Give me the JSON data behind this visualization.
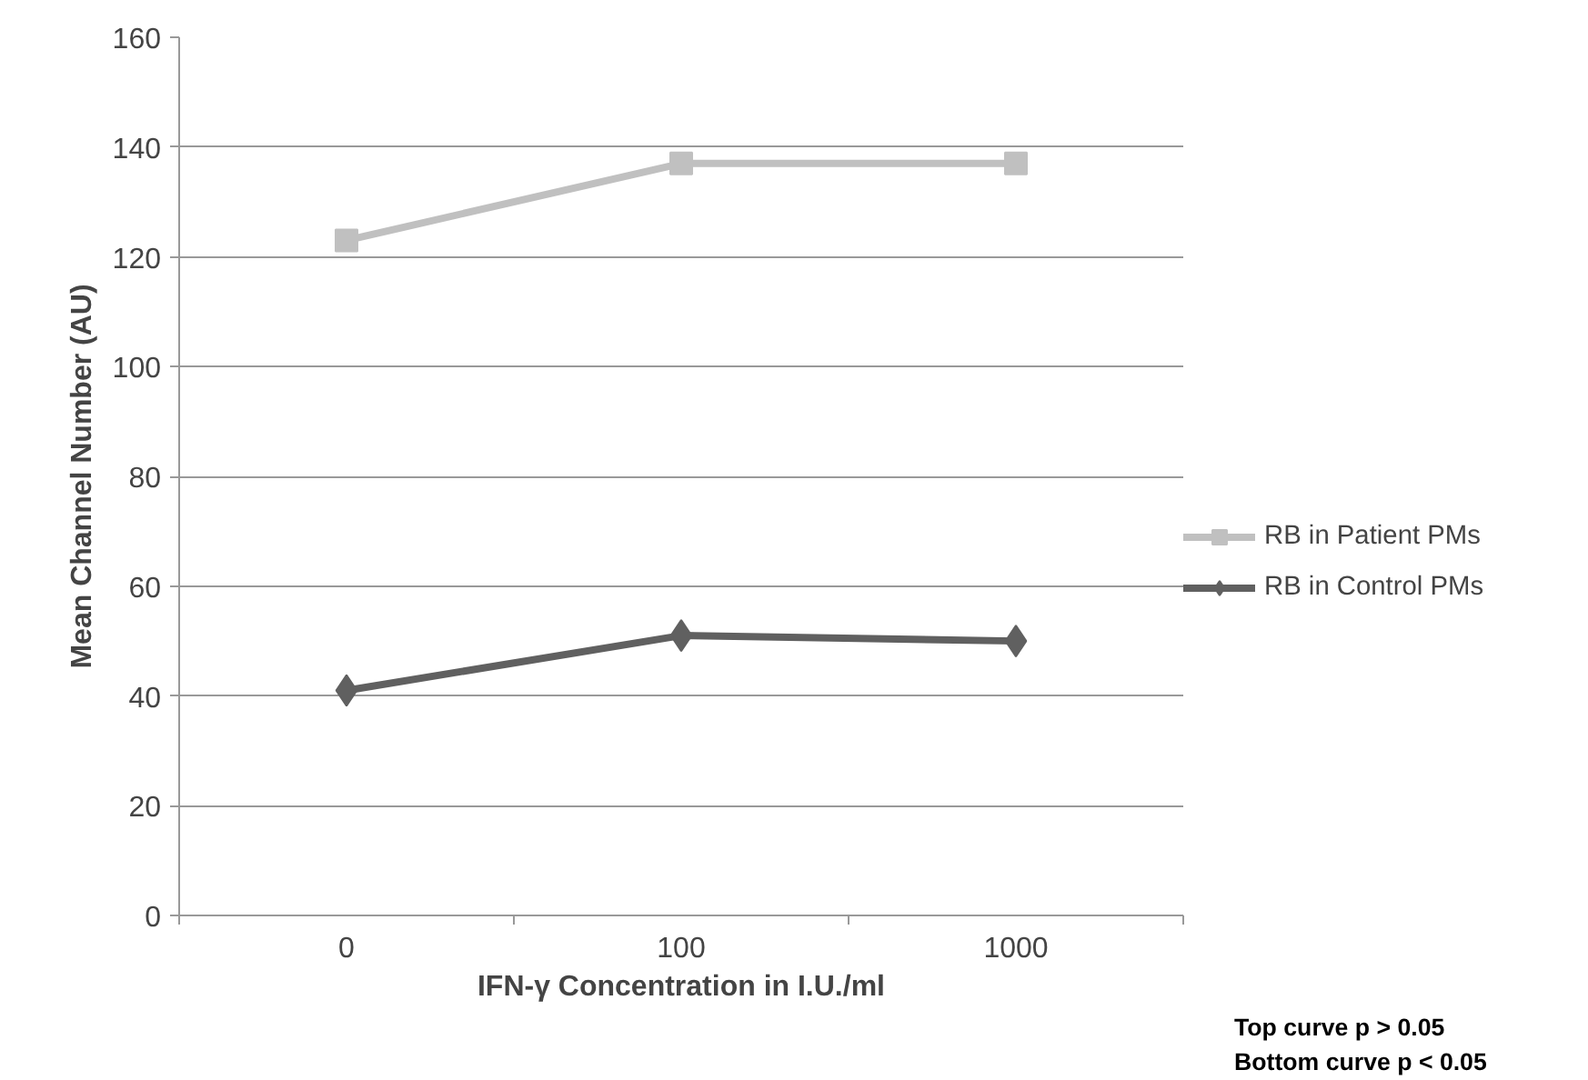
{
  "chart_data": {
    "type": "line",
    "xlabel": "IFN-γ Concentration in I.U./ml",
    "ylabel": "Mean Channel Number (AU)",
    "categories": [
      "0",
      "100",
      "1000"
    ],
    "series": [
      {
        "name": "RB in Patient PMs",
        "color": "#c0c0c0",
        "marker": "square",
        "values": [
          123,
          137,
          137
        ]
      },
      {
        "name": "RB in Control PMs",
        "color": "#606060",
        "marker": "diamond",
        "values": [
          41,
          51,
          50
        ]
      }
    ],
    "ylim": [
      0,
      160
    ],
    "yticks": [
      0,
      20,
      40,
      60,
      80,
      100,
      120,
      140,
      160
    ],
    "grid": "y",
    "legend": "right",
    "line_style": "solid",
    "annotations": [
      "Top  curve p > 0.05",
      "Bottom curve p < 0.05"
    ]
  }
}
